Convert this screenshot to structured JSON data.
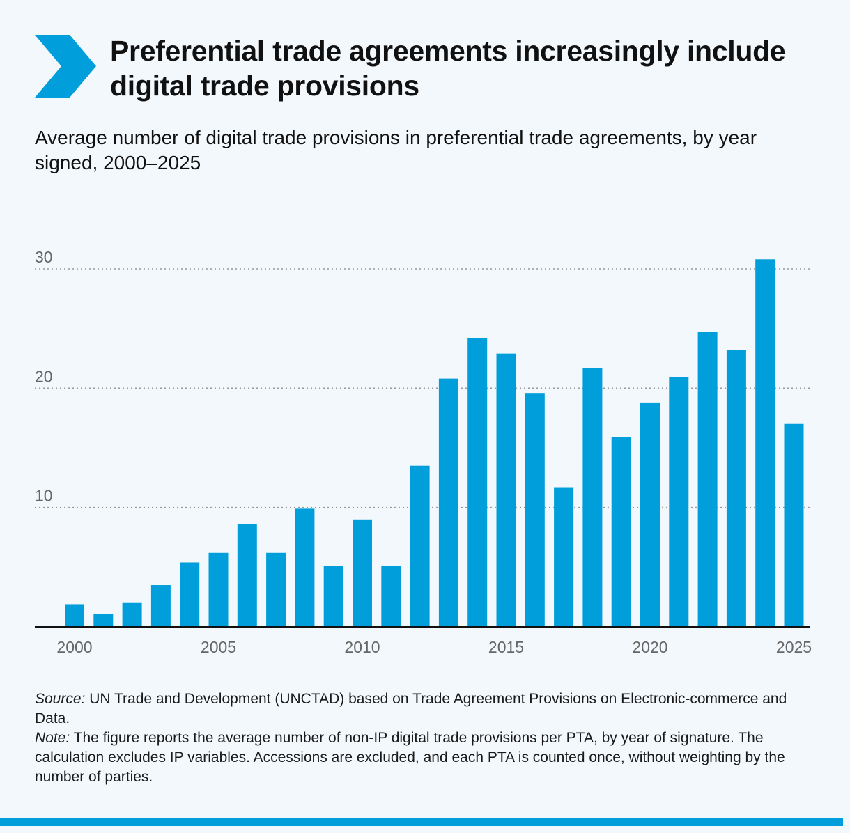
{
  "header": {
    "title": "Preferential trade agreements increasingly include digital trade provisions",
    "subtitle": "Average number of digital trade provisions in preferential trade agreements, by year signed, 2000–2025",
    "logo_icon": "chevron-right-icon"
  },
  "colors": {
    "bar": "#009edb",
    "grid": "#9a9a9a",
    "axis": "#111111",
    "tick_text": "#666666",
    "accent": "#009edb"
  },
  "chart_data": {
    "type": "bar",
    "title": "",
    "xlabel": "",
    "ylabel": "",
    "ylim": [
      0,
      30
    ],
    "yticks": [
      10,
      20,
      30
    ],
    "grid": true,
    "legend": "none",
    "xtick_labels": [
      "2000",
      "2005",
      "2010",
      "2015",
      "2020",
      "2025"
    ],
    "categories": [
      "2000",
      "2001",
      "2002",
      "2003",
      "2004",
      "2005",
      "2006",
      "2007",
      "2008",
      "2009",
      "2010",
      "2011",
      "2012",
      "2013",
      "2014",
      "2015",
      "2016",
      "2017",
      "2018",
      "2019",
      "2020",
      "2021",
      "2022",
      "2023",
      "2024",
      "2025"
    ],
    "values": [
      1.9,
      1.1,
      2.0,
      3.5,
      5.4,
      6.2,
      8.6,
      6.2,
      9.9,
      5.1,
      9.0,
      5.1,
      13.5,
      20.8,
      24.2,
      22.9,
      19.6,
      11.7,
      21.7,
      15.9,
      18.8,
      20.9,
      24.7,
      23.2,
      30.8,
      17.0
    ]
  },
  "notes": {
    "source_label": "Source:",
    "source_text": " UN Trade and Development (UNCTAD) based on Trade Agreement Provisions on Electronic-commerce and Data.",
    "note_label": "Note:",
    "note_text": " The figure reports the average number of non-IP digital trade provisions per PTA, by year of signature. The calculation excludes IP variables. Accessions are excluded, and each PTA is counted once, without weighting by the number of parties."
  }
}
